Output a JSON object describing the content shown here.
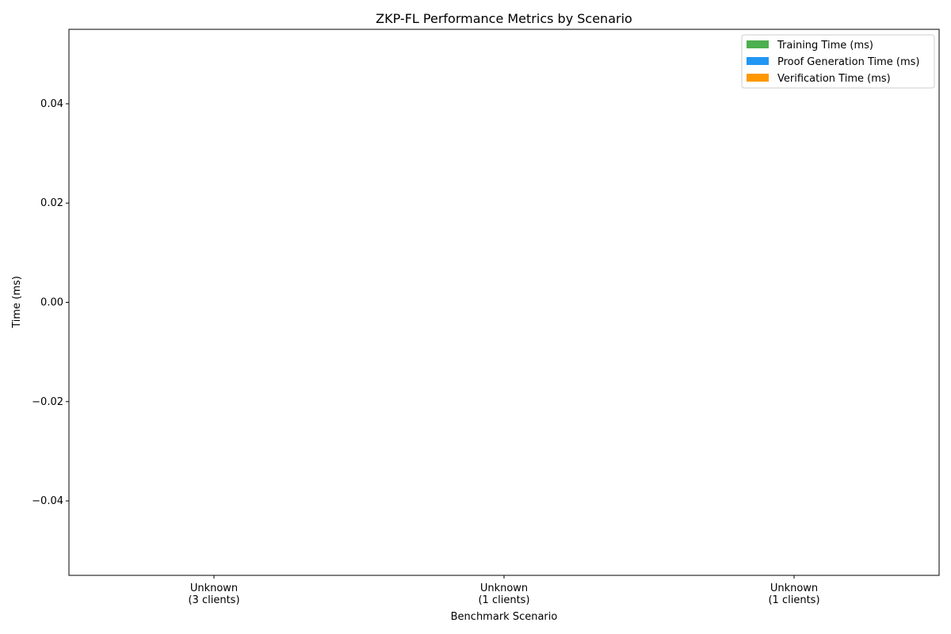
{
  "chart_data": {
    "type": "bar",
    "title": "ZKP-FL Performance Metrics by Scenario",
    "xlabel": "Benchmark Scenario",
    "ylabel": "Time (ms)",
    "categories": [
      [
        "Unknown",
        "(3 clients)"
      ],
      [
        "Unknown",
        "(1 clients)"
      ],
      [
        "Unknown",
        "(1 clients)"
      ]
    ],
    "series": [
      {
        "name": "Training Time (ms)",
        "color": "#4caf50",
        "values": [
          0,
          0,
          0
        ]
      },
      {
        "name": "Proof Generation Time (ms)",
        "color": "#2196f3",
        "values": [
          0,
          0,
          0
        ]
      },
      {
        "name": "Verification Time (ms)",
        "color": "#ff9800",
        "values": [
          0,
          0,
          0
        ]
      }
    ],
    "ylim": [
      -0.055,
      0.055
    ],
    "yticks": [
      -0.04,
      -0.02,
      0.0,
      0.02,
      0.04
    ],
    "ytick_labels": [
      "−0.04",
      "−0.02",
      "0.00",
      "0.02",
      "0.04"
    ],
    "grid": false,
    "legend_position": "top-right"
  }
}
